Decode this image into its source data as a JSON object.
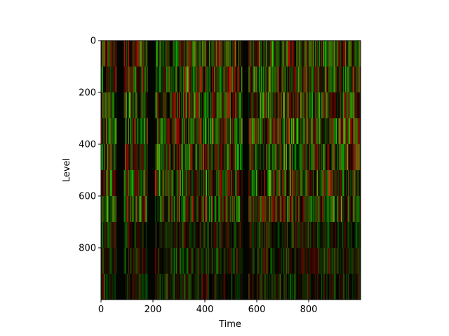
{
  "chart_data": {
    "type": "heatmap",
    "title": "",
    "xlabel": "Time",
    "ylabel": "Level",
    "xlim": [
      0,
      1000
    ],
    "ylim": [
      1000,
      0
    ],
    "xticks": [
      0,
      200,
      400,
      600,
      800
    ],
    "yticks": [
      0,
      200,
      400,
      600,
      800
    ],
    "grid": false,
    "colormap": "red-green",
    "colors": {
      "red": "#c00000",
      "green": "#10b000",
      "dark": "#000000"
    },
    "levels": 10,
    "level_step": 100,
    "dark_bands": [
      {
        "from": 60,
        "to": 85
      },
      {
        "from": 180,
        "to": 205
      },
      {
        "from": 545,
        "to": 565
      }
    ]
  }
}
